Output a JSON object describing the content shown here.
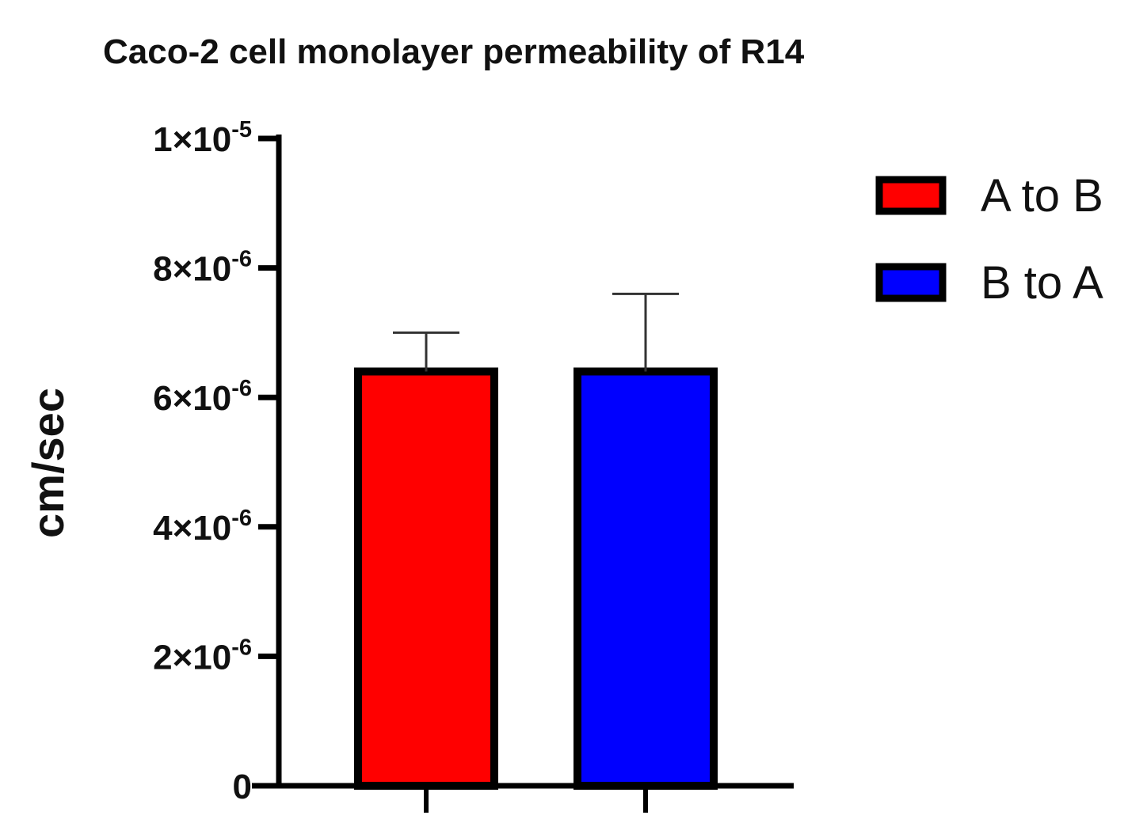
{
  "chart_data": {
    "type": "bar",
    "title": "Caco-2 cell monolayer permeability of R14",
    "xlabel": "",
    "ylabel": "cm/sec",
    "ylim": [
      0,
      1e-05
    ],
    "yticks": [
      {
        "value": 0,
        "base": "0",
        "exp": ""
      },
      {
        "value": 2e-06,
        "base": "2×10",
        "exp": "-6"
      },
      {
        "value": 4e-06,
        "base": "4×10",
        "exp": "-6"
      },
      {
        "value": 6e-06,
        "base": "6×10",
        "exp": "-6"
      },
      {
        "value": 8e-06,
        "base": "8×10",
        "exp": "-6"
      },
      {
        "value": 1e-05,
        "base": "1×10",
        "exp": "-5"
      }
    ],
    "categories": [
      "A to B",
      "B to A"
    ],
    "series": [
      {
        "name": "A to B",
        "value": 6.4e-06,
        "error": 6e-07,
        "color": "#ff0000"
      },
      {
        "name": "B to A",
        "value": 6.4e-06,
        "error": 1.2e-06,
        "color": "#0000ff"
      }
    ],
    "legend_position": "top-right",
    "grid": false
  }
}
